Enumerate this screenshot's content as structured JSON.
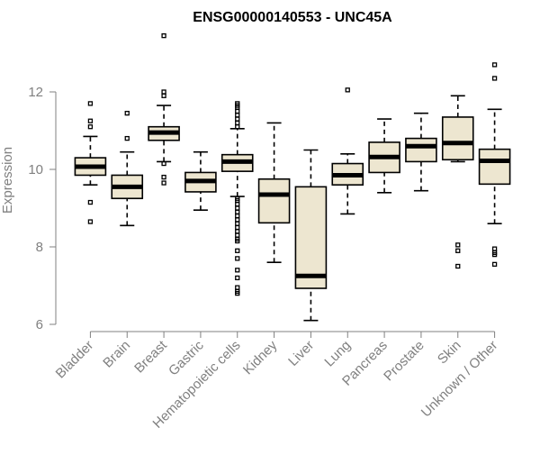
{
  "chart_data": {
    "type": "boxplot",
    "title": "ENSG00000140553 - UNC45A",
    "xlabel": "",
    "ylabel": "Expression",
    "ylim": [
      6,
      13.6
    ],
    "yticks": [
      6,
      8,
      10,
      12
    ],
    "grid": false,
    "colors": {
      "box_fill": "#ede6d0",
      "stroke": "#000000",
      "axis": "#808080"
    },
    "categories": [
      "Bladder",
      "Brain",
      "Breast",
      "Gastric",
      "Hematopoietic cells",
      "Kidney",
      "Liver",
      "Lung",
      "Pancreas",
      "Prostate",
      "Skin",
      "Unknown / Other"
    ],
    "boxes": [
      {
        "name": "Bladder",
        "min": 9.6,
        "q1": 9.85,
        "median": 10.07,
        "q3": 10.3,
        "max": 10.85,
        "outliers": [
          11.7,
          11.25,
          11.1,
          9.15,
          8.65
        ]
      },
      {
        "name": "Brain",
        "min": 8.55,
        "q1": 9.25,
        "median": 9.55,
        "q3": 9.85,
        "max": 10.45,
        "outliers": [
          11.45,
          10.8
        ]
      },
      {
        "name": "Breast",
        "min": 10.2,
        "q1": 10.75,
        "median": 10.95,
        "q3": 11.1,
        "max": 11.65,
        "outliers": [
          13.45,
          12.0,
          11.9,
          10.15,
          9.8,
          9.65
        ]
      },
      {
        "name": "Gastric",
        "min": 8.95,
        "q1": 9.42,
        "median": 9.7,
        "q3": 9.92,
        "max": 10.45,
        "outliers": []
      },
      {
        "name": "Hematopoietic cells",
        "min": 9.3,
        "q1": 9.95,
        "median": 10.2,
        "q3": 10.38,
        "max": 11.05,
        "outliers": [
          11.7,
          11.65,
          11.6,
          11.5,
          11.4,
          11.3,
          11.2,
          11.1,
          9.25,
          9.2,
          9.1,
          9.0,
          8.9,
          8.8,
          8.7,
          8.6,
          8.5,
          8.4,
          8.3,
          8.2,
          8.15,
          7.9,
          7.7,
          7.4,
          7.2,
          6.95,
          6.85,
          6.8
        ]
      },
      {
        "name": "Kidney",
        "min": 7.6,
        "q1": 8.62,
        "median": 9.35,
        "q3": 9.75,
        "max": 11.2,
        "outliers": []
      },
      {
        "name": "Liver",
        "min": 6.1,
        "q1": 6.93,
        "median": 7.25,
        "q3": 9.55,
        "max": 10.5,
        "outliers": []
      },
      {
        "name": "Lung",
        "min": 8.85,
        "q1": 9.6,
        "median": 9.85,
        "q3": 10.15,
        "max": 10.4,
        "outliers": [
          12.05
        ]
      },
      {
        "name": "Pancreas",
        "min": 9.4,
        "q1": 9.92,
        "median": 10.32,
        "q3": 10.7,
        "max": 11.3,
        "outliers": []
      },
      {
        "name": "Prostate",
        "min": 9.45,
        "q1": 10.2,
        "median": 10.6,
        "q3": 10.8,
        "max": 11.45,
        "outliers": []
      },
      {
        "name": "Skin",
        "min": 10.2,
        "q1": 10.25,
        "median": 10.68,
        "q3": 11.35,
        "max": 11.9,
        "outliers": [
          8.05,
          7.9,
          7.5
        ]
      },
      {
        "name": "Unknown / Other",
        "min": 8.6,
        "q1": 9.62,
        "median": 10.22,
        "q3": 10.52,
        "max": 11.55,
        "outliers": [
          12.7,
          12.35,
          7.95,
          7.85,
          7.8,
          7.55
        ]
      }
    ]
  }
}
